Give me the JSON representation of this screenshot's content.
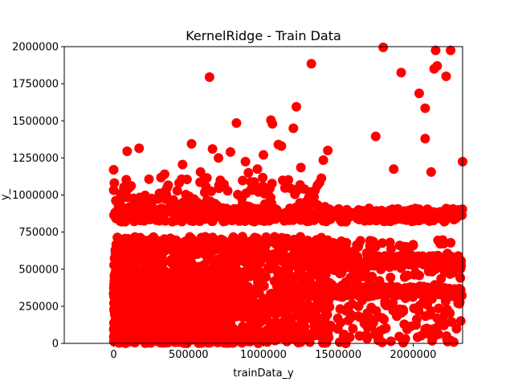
{
  "chart_data": {
    "type": "scatter",
    "title": "KernelRidge - Train Data",
    "xlabel": "trainData_y",
    "ylabel": "y_",
    "xlim": [
      -330000,
      2330000
    ],
    "ylim": [
      0,
      2000000
    ],
    "x_ticks": [
      {
        "value": 0,
        "label": "0"
      },
      {
        "value": 500000,
        "label": "500000"
      },
      {
        "value": 1000000,
        "label": "1000000"
      },
      {
        "value": 1500000,
        "label": "1500000"
      },
      {
        "value": 2000000,
        "label": "2000000"
      }
    ],
    "y_ticks": [
      {
        "value": 0,
        "label": "0"
      },
      {
        "value": 250000,
        "label": "250000"
      },
      {
        "value": 500000,
        "label": "500000"
      },
      {
        "value": 750000,
        "label": "750000"
      },
      {
        "value": 1000000,
        "label": "1000000"
      },
      {
        "value": 1250000,
        "label": "1250000"
      },
      {
        "value": 1500000,
        "label": "1500000"
      },
      {
        "value": 1750000,
        "label": "1750000"
      },
      {
        "value": 2000000,
        "label": "2000000"
      }
    ],
    "grid": false,
    "marker_color": "#ff0000",
    "series": [
      {
        "points": [
          [
            0,
            1170000
          ],
          [
            90000,
            1295000
          ],
          [
            170000,
            1315000
          ],
          [
            520000,
            1345000
          ],
          [
            640000,
            1795000
          ],
          [
            660000,
            1310000
          ],
          [
            700000,
            1250000
          ],
          [
            780000,
            1290000
          ],
          [
            820000,
            1485000
          ],
          [
            880000,
            1225000
          ],
          [
            960000,
            1175000
          ],
          [
            1000000,
            1270000
          ],
          [
            1050000,
            1505000
          ],
          [
            1060000,
            1480000
          ],
          [
            1100000,
            1340000
          ],
          [
            1120000,
            1330000
          ],
          [
            1200000,
            1450000
          ],
          [
            1220000,
            1595000
          ],
          [
            1320000,
            1885000
          ],
          [
            1400000,
            1235000
          ],
          [
            1430000,
            1300000
          ],
          [
            1750000,
            1395000
          ],
          [
            1800000,
            1995000
          ],
          [
            1920000,
            1825000
          ],
          [
            2040000,
            1685000
          ],
          [
            2080000,
            1380000
          ],
          [
            2080000,
            1585000
          ],
          [
            2120000,
            1155000
          ],
          [
            2140000,
            1850000
          ],
          [
            2150000,
            1975000
          ],
          [
            2160000,
            1870000
          ],
          [
            2220000,
            1800000
          ],
          [
            2250000,
            1975000
          ],
          [
            2330000,
            1225000
          ],
          [
            1870000,
            1175000
          ],
          [
            460000,
            1205000
          ],
          [
            340000,
            1140000
          ],
          [
            580000,
            1155000
          ],
          [
            1250000,
            1185000
          ],
          [
            900000,
            1150000
          ],
          [
            1550000,
            0
          ],
          [
            1800000,
            95000
          ],
          [
            1960000,
            95000
          ],
          [
            1720000,
            110000
          ],
          [
            2160000,
            170000
          ],
          [
            2300000,
            270000
          ]
        ]
      }
    ]
  }
}
